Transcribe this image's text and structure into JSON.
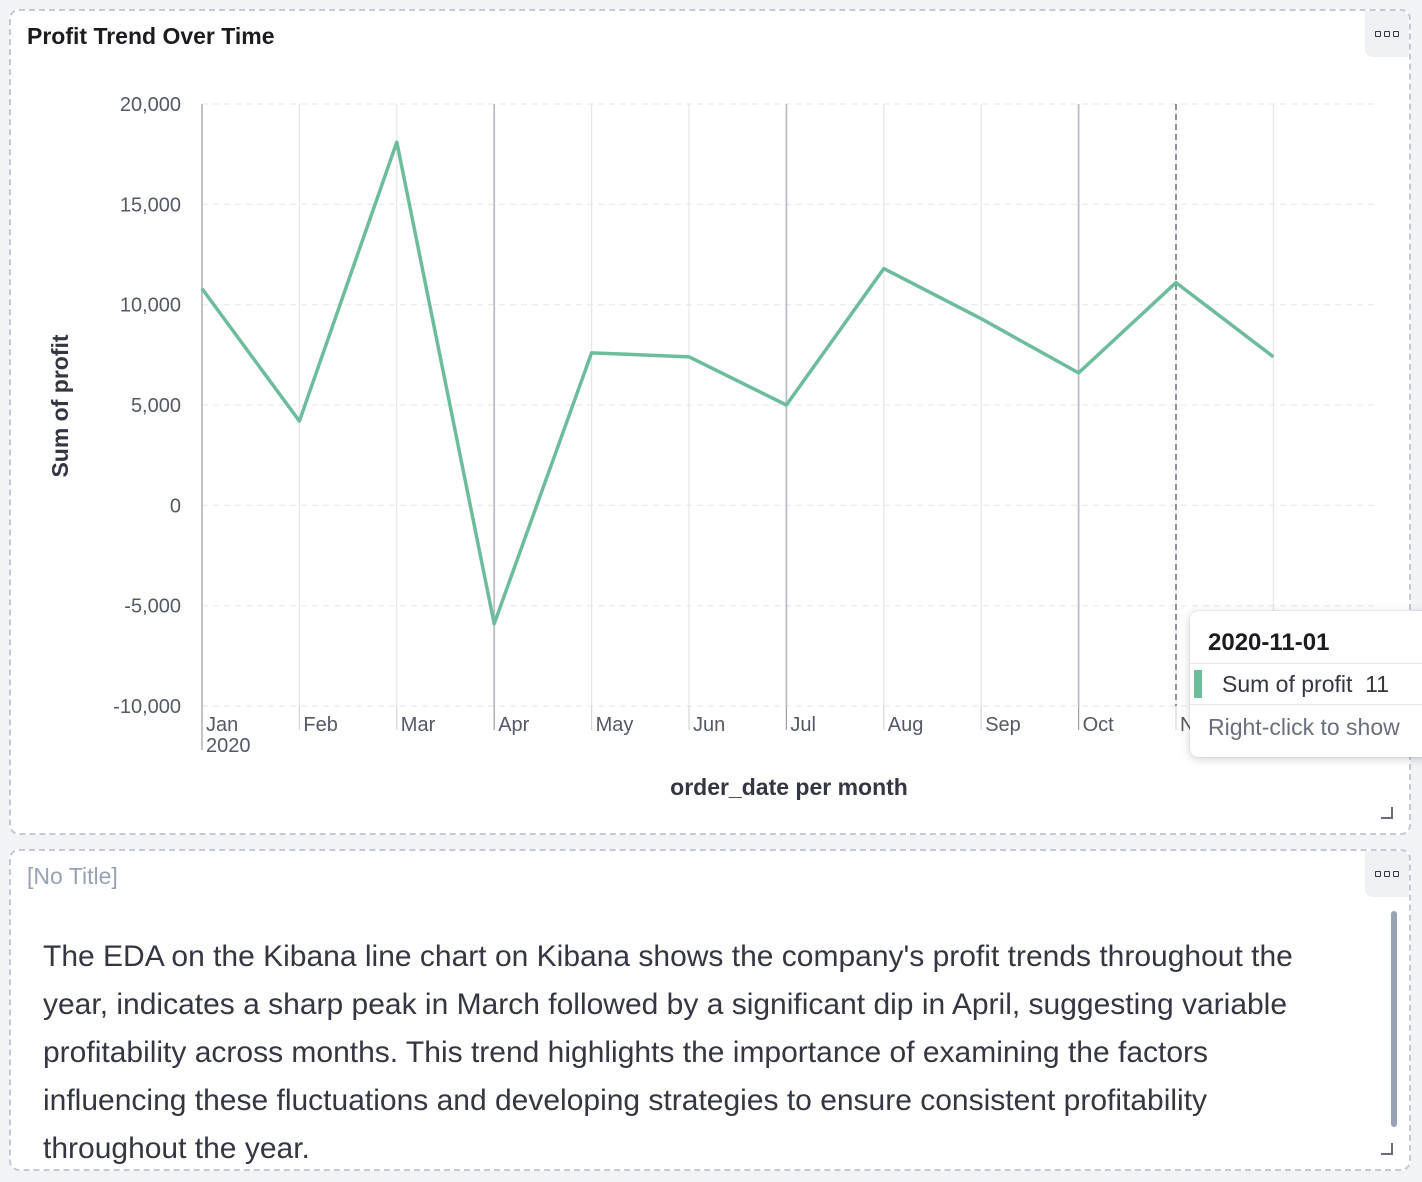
{
  "panels": {
    "chart_panel": {
      "title": "Profit Trend Over Time"
    },
    "text_panel": {
      "title": "[No Title]",
      "body": "The EDA on the Kibana line chart on Kibana shows the company's profit trends throughout the year, indicates a sharp peak in March followed by a significant dip in April, suggesting variable profitability across months. This trend highlights the importance of examining the factors influencing these fluctuations and developing strategies to ensure consistent profitability throughout the year."
    }
  },
  "chart_data": {
    "type": "line",
    "title": "Profit Trend Over Time",
    "xlabel": "order_date per month",
    "ylabel": "Sum of profit",
    "x": [
      "2020-01-01",
      "2020-02-01",
      "2020-03-01",
      "2020-04-01",
      "2020-05-01",
      "2020-06-01",
      "2020-07-01",
      "2020-08-01",
      "2020-09-01",
      "2020-10-01",
      "2020-11-01",
      "2020-12-01"
    ],
    "x_tick_labels": [
      "Jan",
      "Feb",
      "Mar",
      "Apr",
      "May",
      "Jun",
      "Jul",
      "Aug",
      "Sep",
      "Oct",
      "N"
    ],
    "x_year_label": "2020",
    "series": [
      {
        "name": "Sum of profit",
        "values": [
          10800,
          4200,
          18100,
          -5900,
          7600,
          7400,
          5000,
          11800,
          9300,
          6600,
          11100,
          7400
        ]
      }
    ],
    "ylim": [
      -10000,
      20000
    ],
    "y_ticks": [
      20000,
      15000,
      10000,
      5000,
      0,
      -5000,
      -10000
    ],
    "y_tick_labels": [
      "20,000",
      "15,000",
      "10,000",
      "5,000",
      "0",
      "-5,000",
      "-10,000"
    ],
    "grid": true,
    "line_color": "#6dbd9d"
  },
  "tooltip": {
    "date": "2020-11-01",
    "series_label": "Sum of profit",
    "value_partial": "11",
    "hint": "Right-click to show"
  }
}
